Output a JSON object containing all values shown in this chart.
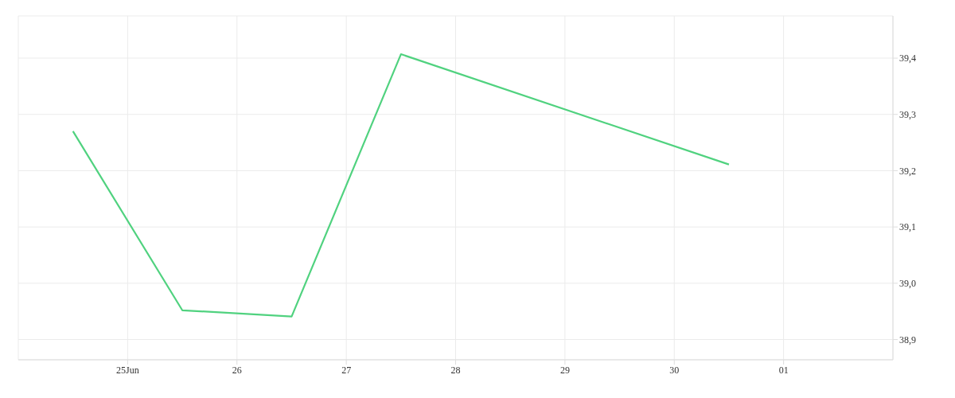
{
  "chart_data": {
    "type": "line",
    "x": [
      "--06-24T12:00",
      "--06-25T12:00",
      "--06-26T12:00",
      "--06-27T12:00",
      "--06-30T12:00"
    ],
    "series": [
      {
        "color": "#50d27f",
        "values": [
          39.27,
          38.952,
          38.941,
          39.407,
          39.211
        ]
      }
    ],
    "xlim": [
      "--06-24",
      "--07-02"
    ],
    "xticks": [
      {
        "value": "--06-25",
        "label": "25Jun"
      },
      {
        "value": "--06-26",
        "label": "26"
      },
      {
        "value": "--06-27",
        "label": "27"
      },
      {
        "value": "--06-28",
        "label": "28"
      },
      {
        "value": "--06-29",
        "label": "29"
      },
      {
        "value": "--06-30",
        "label": "30"
      },
      {
        "value": "--07-01",
        "label": "01"
      }
    ],
    "ylim": [
      38.864,
      39.475
    ],
    "yticks": [
      {
        "value": 38.9,
        "label": "38,9"
      },
      {
        "value": 39.0,
        "label": "39,0"
      },
      {
        "value": 39.1,
        "label": "39,1"
      },
      {
        "value": 39.2,
        "label": "39,2"
      },
      {
        "value": 39.3,
        "label": "39,3"
      },
      {
        "value": 39.4,
        "label": "39,4"
      }
    ],
    "grid": true,
    "marker": "none",
    "line_style": "solid"
  }
}
